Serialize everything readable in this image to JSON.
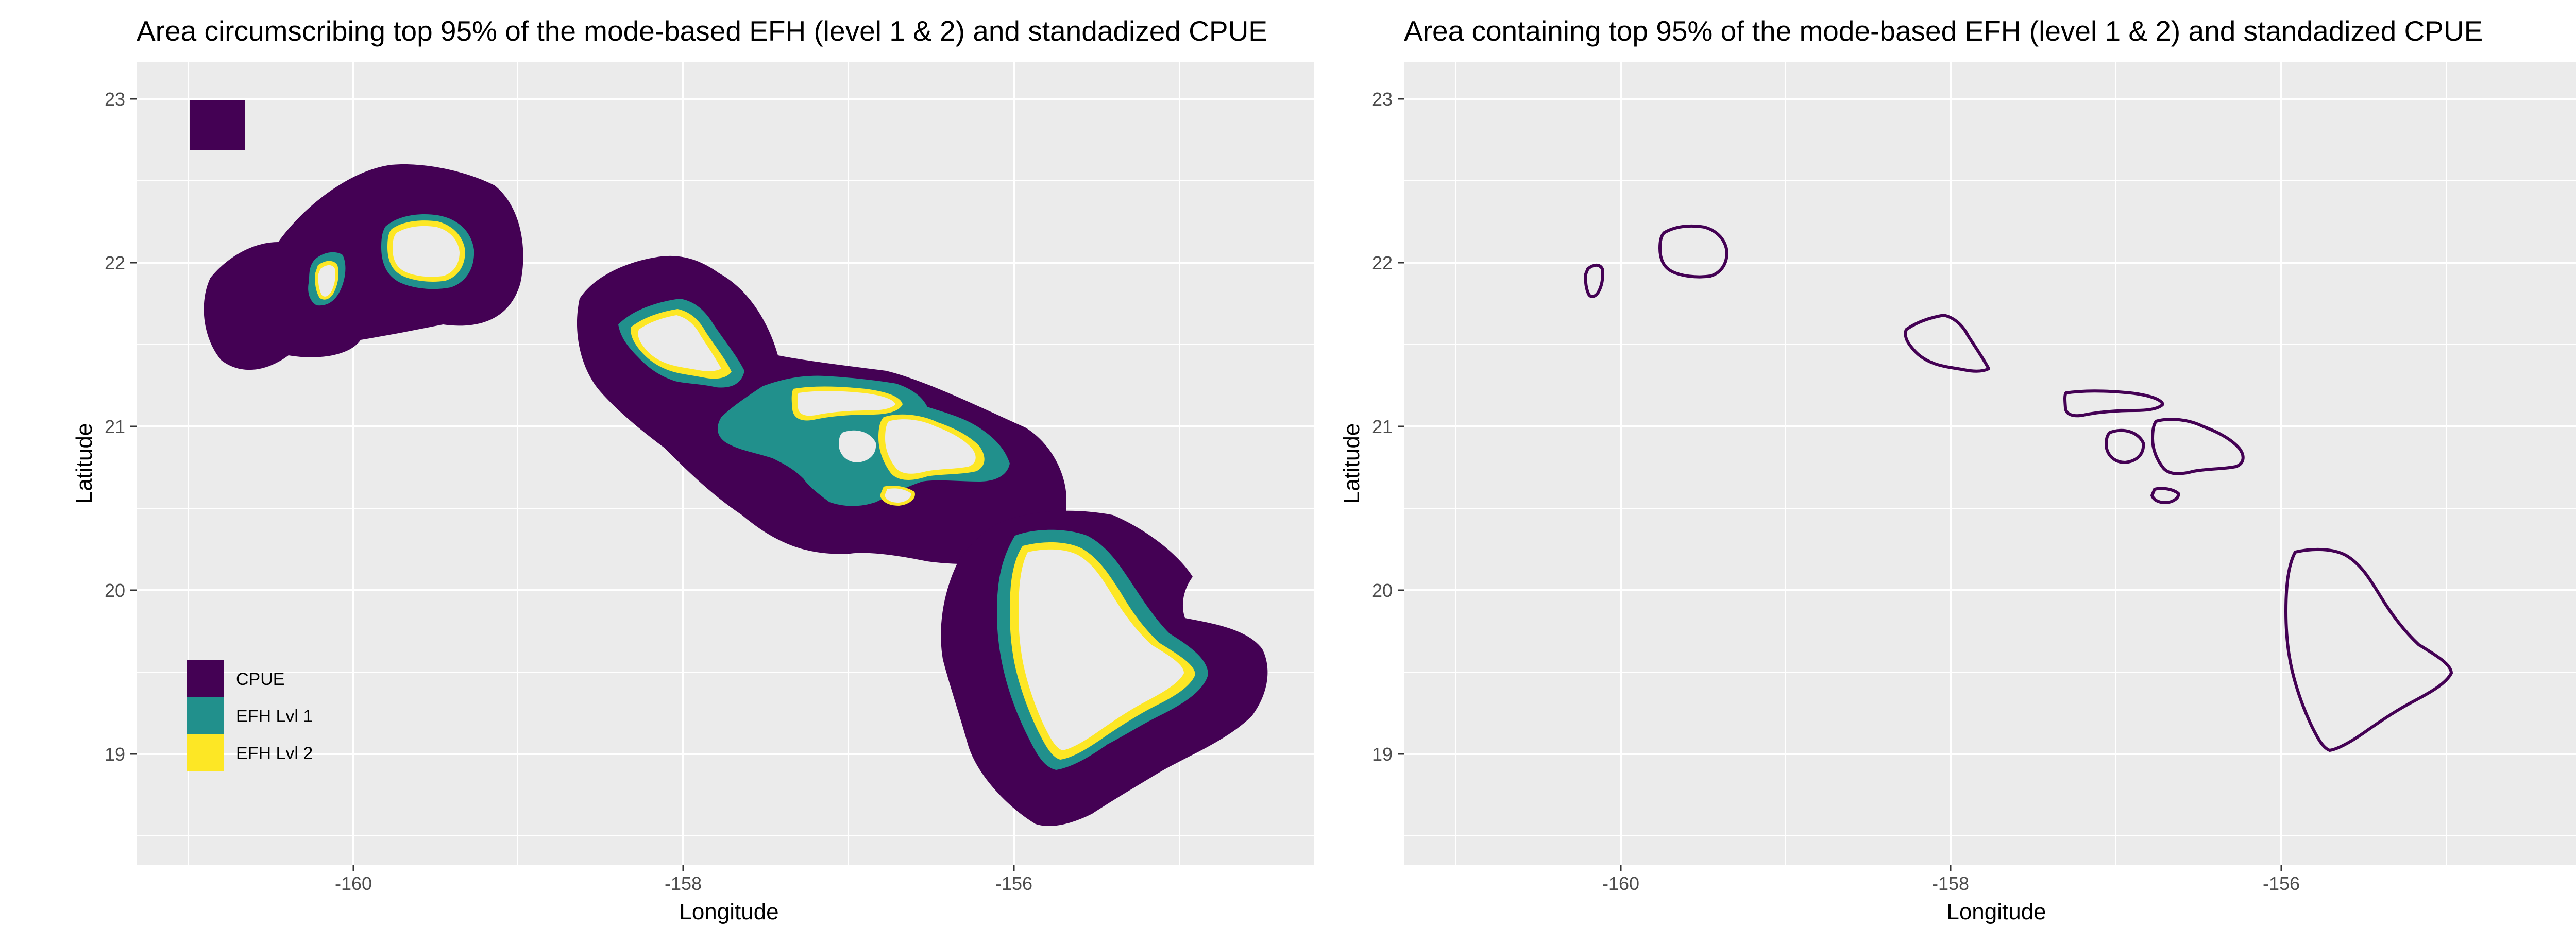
{
  "panels": [
    {
      "title": "Area circumscribing top 95% of the mode-based EFH (level 1 & 2) and standadized CPUE",
      "xlabel": "Longitude",
      "ylabel": "Latitude",
      "legend": {
        "placement": "bottom-left inside",
        "entries": [
          {
            "label": "CPUE",
            "color": "#440154"
          },
          {
            "label": "EFH Lvl 1",
            "color": "#21908C"
          },
          {
            "label": "EFH Lvl 2",
            "color": "#FDE725"
          }
        ]
      }
    },
    {
      "title": "Area containing top 95% of the mode-based EFH (level 1 & 2) and standadized CPUE",
      "xlabel": "Longitude",
      "ylabel": "Latitude"
    }
  ],
  "axes": {
    "x_ticks": [
      "-160",
      "-158",
      "-156"
    ],
    "y_ticks": [
      "23",
      "22",
      "21",
      "20",
      "19"
    ],
    "panel_background": "#EBEBEB",
    "grid": "white"
  },
  "chart_data": [
    {
      "type": "map",
      "title": "Area circumscribing top 95% of the mode-based EFH (level 1 & 2) and standadized CPUE",
      "xlabel": "Longitude",
      "ylabel": "Latitude",
      "xlim": [
        -161.3,
        -154.15
      ],
      "ylim": [
        18.4,
        23.4
      ],
      "x_ticks": [
        -160,
        -158,
        -156
      ],
      "y_ticks": [
        19,
        20,
        21,
        22,
        23
      ],
      "grid": true,
      "layers": [
        "CPUE",
        "EFH Lvl 1",
        "EFH Lvl 2"
      ],
      "islands": [
        "Niihau",
        "Kauai",
        "Oahu",
        "Molokai",
        "Lanai",
        "Maui",
        "Kahoolawe",
        "Hawaii"
      ]
    },
    {
      "type": "map",
      "title": "Area containing top 95% of the mode-based EFH (level 1 & 2) and standadized CPUE",
      "xlabel": "Longitude",
      "ylabel": "Latitude",
      "xlim": [
        -161.3,
        -154.15
      ],
      "ylim": [
        18.4,
        23.4
      ],
      "x_ticks": [
        -160,
        -158,
        -156
      ],
      "y_ticks": [
        19,
        20,
        21,
        22,
        23
      ],
      "grid": true,
      "layers": [
        "CPUE"
      ],
      "islands": [
        "Niihau",
        "Kauai",
        "Oahu",
        "Molokai",
        "Lanai",
        "Maui",
        "Kahoolawe",
        "Hawaii"
      ]
    }
  ]
}
